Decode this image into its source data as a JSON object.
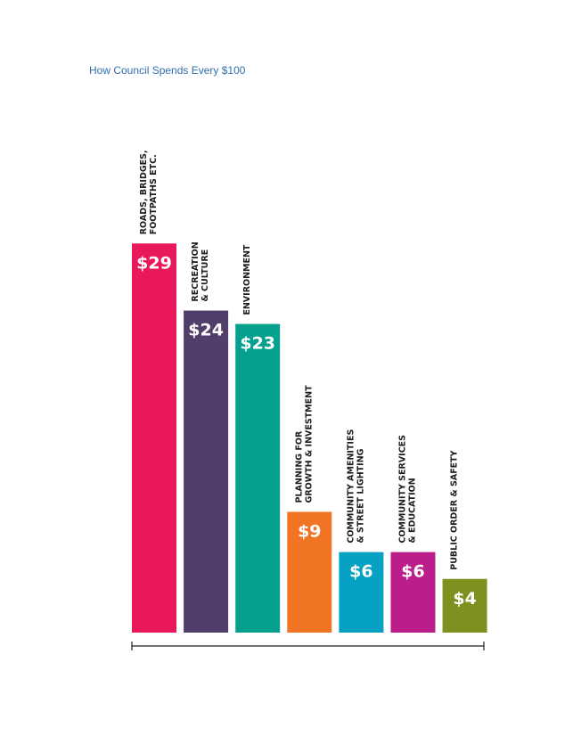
{
  "page": {
    "title": "How Council Spends Every $100"
  },
  "chart_data": {
    "type": "bar",
    "title": "",
    "xlabel": "",
    "ylabel": "",
    "ylim": [
      0,
      30
    ],
    "grid": false,
    "legend": "none",
    "value_prefix": "$",
    "categories": [
      "ROADS, BRIDGES, FOOTPATHS ETC.",
      "RECREATION & CULTURE",
      "ENVIRONMENT",
      "PLANNING FOR GROWTH & INVESTMENT",
      "COMMUNITY AMENITIES & STREET LIGHTING",
      "COMMUNITY SERVICES & EDUCATION",
      "PUBLIC ORDER & SAFETY"
    ],
    "label_lines": [
      [
        "ROADS, BRIDGES,",
        "FOOTPATHS ETC."
      ],
      [
        "RECREATION",
        "& CULTURE"
      ],
      [
        "ENVIRONMENT"
      ],
      [
        "PLANNING FOR",
        "GROWTH & INVESTMENT"
      ],
      [
        "COMMUNITY AMENITIES",
        "& STREET LIGHTING"
      ],
      [
        "COMMUNITY SERVICES",
        "& EDUCATION"
      ],
      [
        "PUBLIC ORDER & SAFETY"
      ]
    ],
    "values": [
      29,
      24,
      23,
      9,
      6,
      6,
      4
    ],
    "value_labels": [
      "$29",
      "$24",
      "$23",
      "$9",
      "$6",
      "$6",
      "$4"
    ],
    "colors": [
      "#e8185b",
      "#523e6b",
      "#06a08e",
      "#f07423",
      "#05a0c2",
      "#bb1e8b",
      "#7d911e"
    ]
  }
}
